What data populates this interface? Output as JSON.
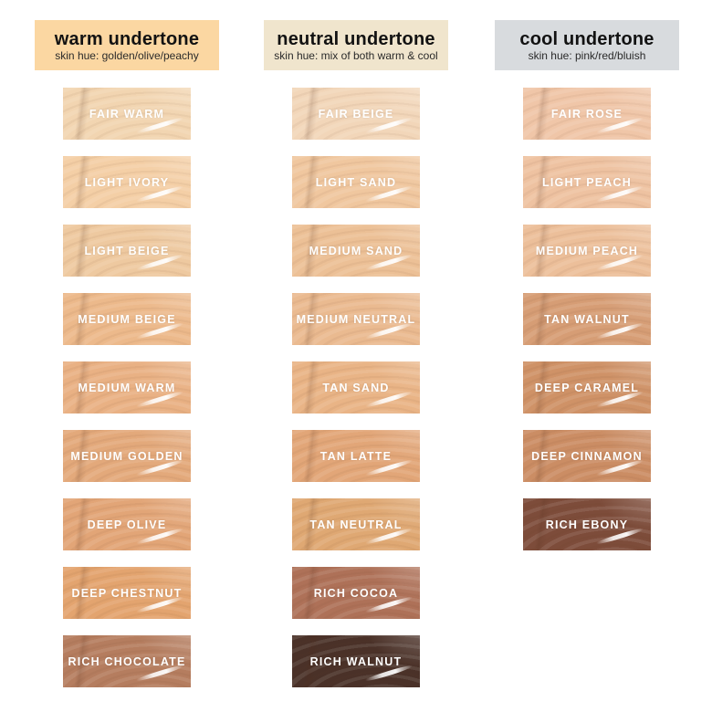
{
  "page": {
    "background": "#ffffff",
    "label_text_color": "#ffffff"
  },
  "columns": [
    {
      "id": "warm",
      "header": {
        "title": "warm undertone",
        "subtitle": "skin hue: golden/olive/peachy",
        "bg": "#fbd7a2",
        "text_color": "#121212"
      },
      "shades": [
        {
          "name": "FAIR WARM",
          "color": "#f2d5b1"
        },
        {
          "name": "LIGHT IVORY",
          "color": "#f4cfa6"
        },
        {
          "name": "LIGHT BEIGE",
          "color": "#eec9a0"
        },
        {
          "name": "MEDIUM BEIGE",
          "color": "#ecb98b"
        },
        {
          "name": "MEDIUM WARM",
          "color": "#e9b184"
        },
        {
          "name": "MEDIUM GOLDEN",
          "color": "#e3a97b"
        },
        {
          "name": "DEEP OLIVE",
          "color": "#e2a577"
        },
        {
          "name": "DEEP CHESTNUT",
          "color": "#e3a46f"
        },
        {
          "name": "RICH CHOCOLATE",
          "color": "#b57d5f"
        }
      ]
    },
    {
      "id": "neutral",
      "header": {
        "title": "neutral undertone",
        "subtitle": "skin hue: mix of both warm & cool",
        "bg": "#f0e5cd",
        "text_color": "#121212"
      },
      "shades": [
        {
          "name": "FAIR BEIGE",
          "color": "#f2d6b9"
        },
        {
          "name": "LIGHT SAND",
          "color": "#f0c79f"
        },
        {
          "name": "MEDIUM SAND",
          "color": "#ecc096"
        },
        {
          "name": "MEDIUM NEUTRAL",
          "color": "#eaba90"
        },
        {
          "name": "TAN SAND",
          "color": "#e9b486"
        },
        {
          "name": "TAN LATTE",
          "color": "#e2a678"
        },
        {
          "name": "TAN NEUTRAL",
          "color": "#dfa873"
        },
        {
          "name": "RICH COCOA",
          "color": "#ae7158"
        },
        {
          "name": "RICH WALNUT",
          "color": "#4a3128"
        }
      ]
    },
    {
      "id": "cool",
      "header": {
        "title": "cool undertone",
        "subtitle": "skin hue: pink/red/bluish",
        "bg": "#d8dbde",
        "text_color": "#121212"
      },
      "shades": [
        {
          "name": "FAIR ROSE",
          "color": "#f0c6a8"
        },
        {
          "name": "LIGHT PEACH",
          "color": "#eec2a1"
        },
        {
          "name": "MEDIUM PEACH",
          "color": "#ecbf9a"
        },
        {
          "name": "TAN WALNUT",
          "color": "#d69d75"
        },
        {
          "name": "DEEP CARAMEL",
          "color": "#cf9267"
        },
        {
          "name": "DEEP CINNAMON",
          "color": "#cb8d64"
        },
        {
          "name": "RICH EBONY",
          "color": "#7d4c3a"
        }
      ]
    }
  ]
}
